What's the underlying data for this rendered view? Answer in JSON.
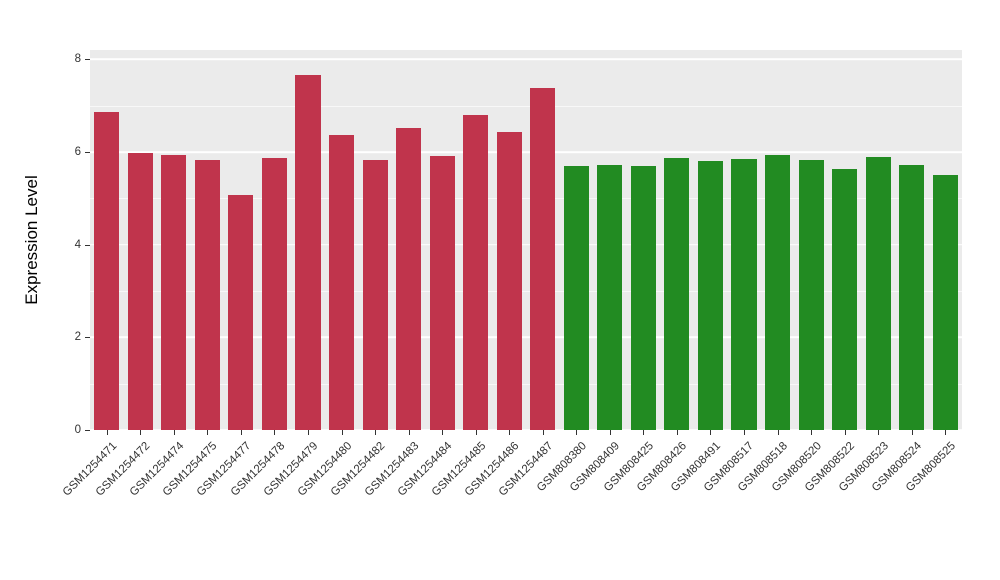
{
  "chart_data": {
    "type": "bar",
    "title": "",
    "xlabel": "",
    "ylabel": "Expression Level",
    "ylim": [
      0,
      8
    ],
    "panel_max": 8.2,
    "yticks": [
      0,
      2,
      4,
      6,
      8
    ],
    "minor_yticks": [
      1,
      3,
      5,
      7
    ],
    "grid": true,
    "legend_position": "none",
    "panel_bg": "#EBEBEB",
    "grid_color": "#FFFFFF",
    "colors": {
      "series1": "#C0344C",
      "series2": "#228B22"
    },
    "bars": [
      {
        "label": "GSM1254471",
        "value": 6.87,
        "group": "series1"
      },
      {
        "label": "GSM1254472",
        "value": 5.97,
        "group": "series1"
      },
      {
        "label": "GSM1254474",
        "value": 5.94,
        "group": "series1"
      },
      {
        "label": "GSM1254475",
        "value": 5.82,
        "group": "series1"
      },
      {
        "label": "GSM1254477",
        "value": 5.07,
        "group": "series1"
      },
      {
        "label": "GSM1254478",
        "value": 5.88,
        "group": "series1"
      },
      {
        "label": "GSM1254479",
        "value": 7.66,
        "group": "series1"
      },
      {
        "label": "GSM1254480",
        "value": 6.37,
        "group": "series1"
      },
      {
        "label": "GSM1254482",
        "value": 5.82,
        "group": "series1"
      },
      {
        "label": "GSM1254483",
        "value": 6.52,
        "group": "series1"
      },
      {
        "label": "GSM1254484",
        "value": 5.92,
        "group": "series1"
      },
      {
        "label": "GSM1254485",
        "value": 6.8,
        "group": "series1"
      },
      {
        "label": "GSM1254486",
        "value": 6.44,
        "group": "series1"
      },
      {
        "label": "GSM1254487",
        "value": 7.38,
        "group": "series1"
      },
      {
        "label": "GSM808380",
        "value": 5.7,
        "group": "series2"
      },
      {
        "label": "GSM808409",
        "value": 5.72,
        "group": "series2"
      },
      {
        "label": "GSM808425",
        "value": 5.7,
        "group": "series2"
      },
      {
        "label": "GSM808426",
        "value": 5.86,
        "group": "series2"
      },
      {
        "label": "GSM808491",
        "value": 5.81,
        "group": "series2"
      },
      {
        "label": "GSM808517",
        "value": 5.85,
        "group": "series2"
      },
      {
        "label": "GSM808518",
        "value": 5.94,
        "group": "series2"
      },
      {
        "label": "GSM808520",
        "value": 5.83,
        "group": "series2"
      },
      {
        "label": "GSM808522",
        "value": 5.64,
        "group": "series2"
      },
      {
        "label": "GSM808523",
        "value": 5.9,
        "group": "series2"
      },
      {
        "label": "GSM808524",
        "value": 5.72,
        "group": "series2"
      },
      {
        "label": "GSM808525",
        "value": 5.5,
        "group": "series2"
      }
    ]
  }
}
